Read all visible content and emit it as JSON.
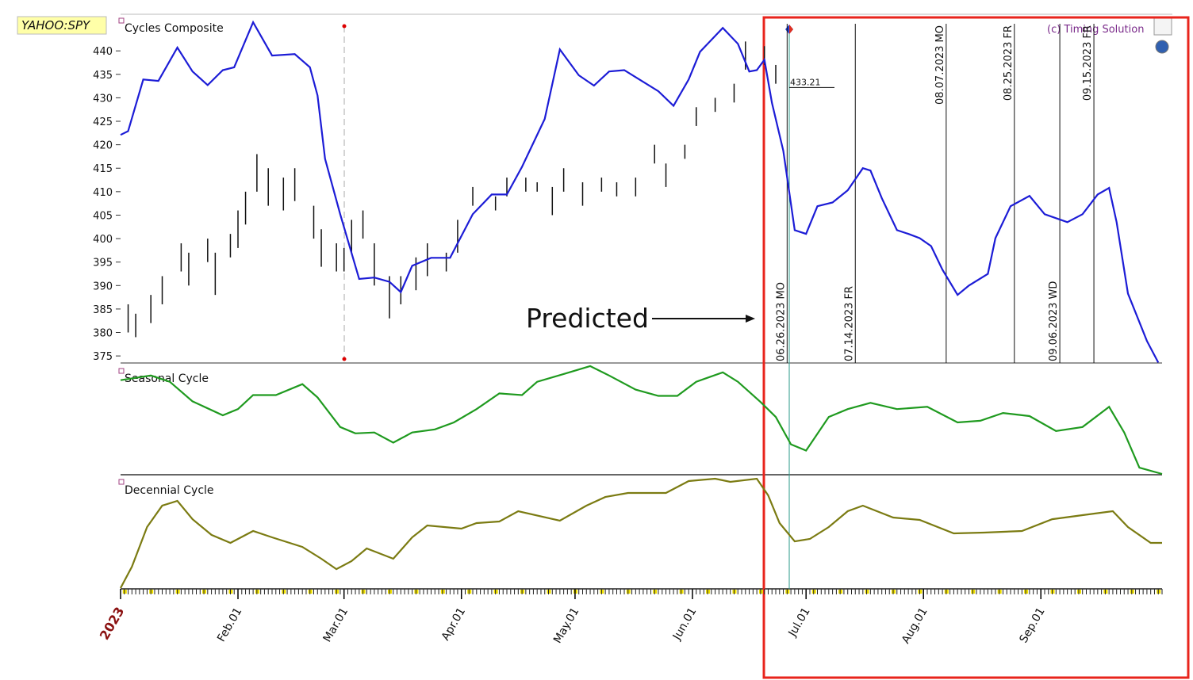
{
  "symbol": "YAHOO:SPY",
  "copyright": "(c) Timing Solution",
  "annotation": "Predicted",
  "chart_data": [
    {
      "type": "line",
      "title": "Cycles Composite",
      "color": "#1c1cd6",
      "ylim": [
        373.5,
        447.8
      ],
      "yticks": [
        375,
        380,
        385,
        390,
        395,
        400,
        405,
        410,
        415,
        420,
        425,
        430,
        435,
        440
      ],
      "x": [
        "2023-01-01",
        "2023-01-03",
        "2023-01-07",
        "2023-01-11",
        "2023-01-16",
        "2023-01-20",
        "2023-01-24",
        "2023-01-28",
        "2023-01-31",
        "2023-02-05",
        "2023-02-10",
        "2023-02-16",
        "2023-02-20",
        "2023-02-22",
        "2023-02-24",
        "2023-02-28",
        "2023-03-05",
        "2023-03-09",
        "2023-03-13",
        "2023-03-16",
        "2023-03-19",
        "2023-03-24",
        "2023-03-29",
        "2023-04-04",
        "2023-04-09",
        "2023-04-13",
        "2023-04-17",
        "2023-04-23",
        "2023-04-27",
        "2023-05-02",
        "2023-05-06",
        "2023-05-10",
        "2023-05-14",
        "2023-05-18",
        "2023-05-23",
        "2023-05-27",
        "2023-05-31",
        "2023-06-03",
        "2023-06-09",
        "2023-06-13",
        "2023-06-16",
        "2023-06-18",
        "2023-06-20",
        "2023-06-22",
        "2023-06-25",
        "2023-06-28",
        "2023-07-01",
        "2023-07-04",
        "2023-07-08",
        "2023-07-12",
        "2023-07-16",
        "2023-07-18",
        "2023-07-21",
        "2023-07-25",
        "2023-07-28",
        "2023-07-31",
        "2023-08-03",
        "2023-08-06",
        "2023-08-10",
        "2023-08-13",
        "2023-08-18",
        "2023-08-20",
        "2023-08-24",
        "2023-08-29",
        "2023-09-02",
        "2023-09-08",
        "2023-09-12",
        "2023-09-16",
        "2023-09-19",
        "2023-09-21",
        "2023-09-24",
        "2023-09-29",
        "2023-10-02"
      ],
      "values": [
        422.1,
        422.9,
        433.9,
        433.6,
        440.7,
        435.6,
        432.7,
        435.9,
        436.5,
        446.1,
        439.0,
        439.3,
        436.5,
        430.5,
        417.0,
        405.2,
        391.4,
        391.7,
        390.8,
        388.6,
        394.2,
        395.9,
        395.9,
        405.2,
        409.4,
        409.4,
        415.3,
        425.5,
        440.3,
        434.8,
        432.6,
        435.6,
        435.9,
        433.9,
        431.4,
        428.3,
        433.9,
        439.8,
        444.9,
        441.5,
        435.6,
        435.9,
        438.1,
        428.9,
        418.7,
        401.8,
        401.0,
        406.9,
        407.7,
        410.3,
        415.0,
        414.5,
        408.6,
        401.8,
        401.0,
        400.1,
        398.4,
        393.4,
        388.0,
        390.0,
        392.5,
        400.1,
        406.9,
        409.1,
        405.2,
        403.5,
        405.2,
        409.4,
        410.8,
        403.5,
        388.3,
        378.2,
        373.6
      ],
      "bars": {
        "color": "#111111",
        "x": [
          "2023-01-03",
          "2023-01-05",
          "2023-01-09",
          "2023-01-12",
          "2023-01-17",
          "2023-01-19",
          "2023-01-24",
          "2023-01-26",
          "2023-01-30",
          "2023-02-01",
          "2023-02-03",
          "2023-02-06",
          "2023-02-09",
          "2023-02-13",
          "2023-02-16",
          "2023-02-21",
          "2023-02-23",
          "2023-02-27",
          "2023-03-01",
          "2023-03-03",
          "2023-03-06",
          "2023-03-09",
          "2023-03-13",
          "2023-03-16",
          "2023-03-20",
          "2023-03-23",
          "2023-03-28",
          "2023-03-31",
          "2023-04-04",
          "2023-04-10",
          "2023-04-13",
          "2023-04-18",
          "2023-04-21",
          "2023-04-25",
          "2023-04-28",
          "2023-05-03",
          "2023-05-08",
          "2023-05-12",
          "2023-05-17",
          "2023-05-22",
          "2023-05-25",
          "2023-05-30",
          "2023-06-02",
          "2023-06-07",
          "2023-06-12",
          "2023-06-15",
          "2023-06-20",
          "2023-06-23"
        ],
        "high": [
          386,
          384,
          388,
          392,
          399,
          397,
          400,
          397,
          401,
          406,
          410,
          418,
          415,
          413,
          415,
          407,
          402,
          399,
          398,
          404,
          406,
          399,
          392,
          392,
          396,
          399,
          397,
          404,
          411,
          409,
          413,
          413,
          412,
          411,
          415,
          412,
          413,
          412,
          413,
          420,
          416,
          420,
          428,
          430,
          433,
          442,
          441,
          437
        ],
        "low": [
          380,
          379,
          382,
          386,
          393,
          390,
          395,
          388,
          396,
          398,
          403,
          410,
          407,
          406,
          408,
          400,
          394,
          393,
          393,
          397,
          400,
          390,
          383,
          386,
          389,
          392,
          393,
          397,
          407,
          406,
          409,
          410,
          410,
          405,
          410,
          407,
          410,
          409,
          409,
          416,
          411,
          417,
          424,
          427,
          429,
          436,
          437,
          433
        ]
      },
      "last_price": 433.21,
      "events": [
        {
          "x": "2023-06-26",
          "label": "06.26.2023 MO"
        },
        {
          "x": "2023-07-14",
          "label": "07.14.2023 FR"
        },
        {
          "x": "2023-08-07",
          "label": "08.07.2023 MO"
        },
        {
          "x": "2023-08-25",
          "label": "08.25.2023 FR"
        },
        {
          "x": "2023-09-06",
          "label": "09.06.2023 WD"
        },
        {
          "x": "2023-09-15",
          "label": "09.15.2023 FR"
        }
      ]
    },
    {
      "type": "line",
      "title": "Seasonal Cycle",
      "color": "#1f9a1f",
      "ylim": [
        0,
        100
      ],
      "x": [
        "2023-01-01",
        "2023-01-09",
        "2023-01-14",
        "2023-01-20",
        "2023-01-28",
        "2023-02-01",
        "2023-02-05",
        "2023-02-11",
        "2023-02-18",
        "2023-02-22",
        "2023-02-28",
        "2023-03-04",
        "2023-03-09",
        "2023-03-14",
        "2023-03-19",
        "2023-03-25",
        "2023-03-30",
        "2023-04-05",
        "2023-04-11",
        "2023-04-17",
        "2023-04-21",
        "2023-04-28",
        "2023-05-05",
        "2023-05-10",
        "2023-05-17",
        "2023-05-23",
        "2023-05-28",
        "2023-06-02",
        "2023-06-09",
        "2023-06-13",
        "2023-06-19",
        "2023-06-23",
        "2023-06-27",
        "2023-07-01",
        "2023-07-07",
        "2023-07-12",
        "2023-07-18",
        "2023-07-25",
        "2023-08-02",
        "2023-08-10",
        "2023-08-16",
        "2023-08-22",
        "2023-08-29",
        "2023-09-05",
        "2023-09-12",
        "2023-09-19",
        "2023-09-23",
        "2023-09-27",
        "2023-10-03"
      ],
      "values": [
        85.7,
        90.0,
        84.3,
        66.4,
        53.6,
        59.3,
        72.1,
        72.1,
        82.1,
        70.0,
        42.9,
        37.1,
        37.9,
        28.6,
        37.9,
        40.7,
        47.1,
        59.3,
        73.6,
        72.1,
        84.3,
        91.4,
        98.6,
        90.0,
        77.1,
        71.4,
        71.4,
        84.3,
        92.9,
        84.3,
        65.7,
        52.1,
        27.1,
        21.4,
        52.1,
        59.3,
        65.0,
        59.3,
        61.4,
        47.1,
        48.6,
        55.7,
        52.9,
        39.3,
        42.9,
        61.4,
        37.9,
        5.7,
        0
      ]
    },
    {
      "type": "line",
      "title": "Decennial Cycle",
      "color": "#7b7b12",
      "ylim": [
        0,
        100
      ],
      "xlim": [
        "2023-01-01",
        "2023-10-03"
      ],
      "xticks": [
        {
          "value": "2023-01-01",
          "label": "2023"
        },
        {
          "value": "2023-02-01",
          "label": "Feb.01"
        },
        {
          "value": "2023-03-01",
          "label": "Mar.01"
        },
        {
          "value": "2023-04-01",
          "label": "Apr.01"
        },
        {
          "value": "2023-05-01",
          "label": "May.01"
        },
        {
          "value": "2023-06-01",
          "label": "Jun.01"
        },
        {
          "value": "2023-07-01",
          "label": "Jul.01"
        },
        {
          "value": "2023-08-01",
          "label": "Aug.01"
        },
        {
          "value": "2023-09-01",
          "label": "Sep.01"
        }
      ],
      "x": [
        "2023-01-01",
        "2023-01-04",
        "2023-01-08",
        "2023-01-12",
        "2023-01-16",
        "2023-01-20",
        "2023-01-25",
        "2023-01-30",
        "2023-02-05",
        "2023-02-10",
        "2023-02-18",
        "2023-02-23",
        "2023-02-27",
        "2023-03-03",
        "2023-03-07",
        "2023-03-14",
        "2023-03-19",
        "2023-03-23",
        "2023-04-01",
        "2023-04-05",
        "2023-04-11",
        "2023-04-16",
        "2023-04-27",
        "2023-05-04",
        "2023-05-09",
        "2023-05-15",
        "2023-05-25",
        "2023-05-31",
        "2023-06-07",
        "2023-06-11",
        "2023-06-18",
        "2023-06-21",
        "2023-06-24",
        "2023-06-28",
        "2023-07-02",
        "2023-07-07",
        "2023-07-12",
        "2023-07-16",
        "2023-07-24",
        "2023-07-31",
        "2023-08-09",
        "2023-08-17",
        "2023-08-27",
        "2023-09-04",
        "2023-09-12",
        "2023-09-20",
        "2023-09-24",
        "2023-09-30",
        "2023-10-03"
      ],
      "values": [
        0,
        19.3,
        55.0,
        74.3,
        78.6,
        62.1,
        47.9,
        40.7,
        51.4,
        45.7,
        37.1,
        26.4,
        17.1,
        24.3,
        35.7,
        26.4,
        45.7,
        56.4,
        53.6,
        58.6,
        60.0,
        69.3,
        60.7,
        74.3,
        82.1,
        85.7,
        85.7,
        96.4,
        98.6,
        95.7,
        98.6,
        83.6,
        58.6,
        42.1,
        44.3,
        55.0,
        69.3,
        74.3,
        63.6,
        61.4,
        49.3,
        50.0,
        51.4,
        62.1,
        65.7,
        69.3,
        55.0,
        40.7,
        40.7
      ]
    }
  ]
}
